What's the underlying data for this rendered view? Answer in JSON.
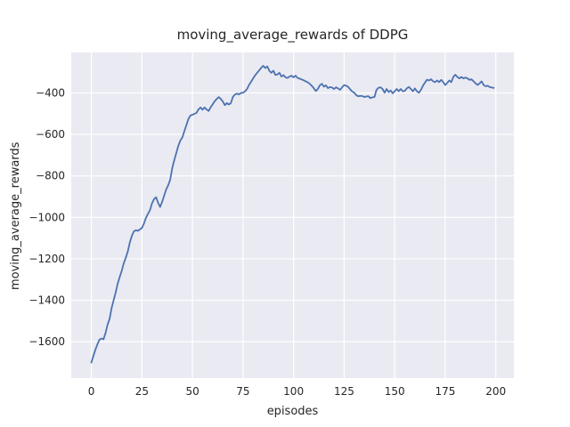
{
  "figure": {
    "title": "moving_average_rewards of DDPG",
    "xlabel": "episodes",
    "ylabel": "moving_average_rewards"
  },
  "chart_data": {
    "type": "line",
    "title": "moving_average_rewards of DDPG",
    "xlabel": "episodes",
    "ylabel": "moving_average_rewards",
    "legend": null,
    "grid": true,
    "plot_bg_color": "#EAEAF2",
    "grid_color": "#FFFFFF",
    "line_color": "#4C72B0",
    "text_color": "#262626",
    "xlim": [
      -9.95,
      208.95
    ],
    "ylim": [
      -1775,
      -205
    ],
    "xtick_values": [
      0,
      25,
      50,
      75,
      100,
      125,
      150,
      175,
      200
    ],
    "xtick_labels": [
      "0",
      "25",
      "50",
      "75",
      "100",
      "125",
      "150",
      "175",
      "200"
    ],
    "ytick_values": [
      -400,
      -600,
      -800,
      -1000,
      -1200,
      -1400,
      -1600
    ],
    "ytick_labels": [
      "−400",
      "−600",
      "−800",
      "−1000",
      "−1200",
      "−1400",
      "−1600"
    ],
    "x_min": 0,
    "x_step": 1,
    "series": [
      {
        "name": "moving_average_rewards",
        "values": [
          -1700,
          -1668,
          -1638,
          -1612,
          -1590,
          -1584,
          -1588,
          -1558,
          -1518,
          -1490,
          -1438,
          -1400,
          -1363,
          -1320,
          -1288,
          -1258,
          -1222,
          -1195,
          -1165,
          -1122,
          -1090,
          -1068,
          -1062,
          -1065,
          -1058,
          -1051,
          -1030,
          -1002,
          -983,
          -965,
          -932,
          -912,
          -903,
          -930,
          -950,
          -925,
          -895,
          -865,
          -845,
          -818,
          -762,
          -724,
          -690,
          -655,
          -630,
          -614,
          -584,
          -555,
          -525,
          -509,
          -505,
          -501,
          -496,
          -479,
          -470,
          -481,
          -470,
          -480,
          -487,
          -469,
          -455,
          -440,
          -429,
          -420,
          -429,
          -441,
          -459,
          -449,
          -456,
          -449,
          -419,
          -408,
          -403,
          -407,
          -400,
          -399,
          -392,
          -381,
          -361,
          -346,
          -330,
          -315,
          -303,
          -291,
          -279,
          -269,
          -280,
          -272,
          -293,
          -303,
          -293,
          -313,
          -311,
          -303,
          -321,
          -314,
          -325,
          -328,
          -321,
          -317,
          -325,
          -317,
          -328,
          -331,
          -335,
          -339,
          -344,
          -349,
          -356,
          -366,
          -377,
          -391,
          -381,
          -363,
          -356,
          -370,
          -363,
          -377,
          -372,
          -374,
          -381,
          -373,
          -378,
          -385,
          -373,
          -362,
          -365,
          -371,
          -383,
          -393,
          -399,
          -411,
          -416,
          -414,
          -415,
          -420,
          -417,
          -416,
          -425,
          -421,
          -420,
          -385,
          -375,
          -373,
          -381,
          -399,
          -381,
          -396,
          -388,
          -402,
          -392,
          -381,
          -392,
          -381,
          -392,
          -390,
          -378,
          -371,
          -381,
          -392,
          -378,
          -392,
          -399,
          -385,
          -365,
          -350,
          -336,
          -340,
          -334,
          -344,
          -348,
          -340,
          -348,
          -337,
          -348,
          -362,
          -351,
          -340,
          -348,
          -323,
          -312,
          -323,
          -330,
          -323,
          -330,
          -326,
          -330,
          -337,
          -334,
          -344,
          -354,
          -362,
          -354,
          -344,
          -362,
          -368,
          -365,
          -372,
          -374,
          -376
        ]
      }
    ]
  }
}
